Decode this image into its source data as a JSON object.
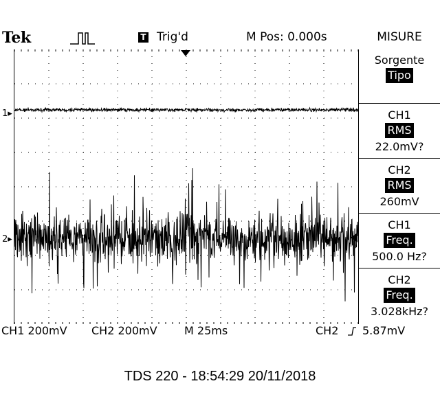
{
  "header": {
    "brand": "Tek",
    "trigger_icon_letter": "T",
    "trigger_status": "Trig'd",
    "m_pos": "M Pos: 0.000s",
    "menu_title": "MISURE"
  },
  "channel_markers": {
    "ch1": "1",
    "ch2": "2"
  },
  "menu": {
    "items": [
      {
        "line1": "Sorgente",
        "badge": "Tipo",
        "line3": ""
      },
      {
        "line1": "CH1",
        "badge": "RMS",
        "line3": "22.0mV?"
      },
      {
        "line1": "CH2",
        "badge": "RMS",
        "line3": "260mV"
      },
      {
        "line1": "CH1",
        "badge": "Freq.",
        "line3": "500.0 Hz?"
      },
      {
        "line1": "CH2",
        "badge": "Freq.",
        "line3": "3.028kHz?"
      }
    ]
  },
  "footer": {
    "ch1_scale": "CH1 200mV",
    "ch2_scale": "CH2 200mV",
    "timebase": "M 25ms",
    "trigger_source": "CH2",
    "trigger_slope_icon": "rising-edge-icon",
    "trigger_level": "5.87mV"
  },
  "caption": "TDS 220 - 18:54:29    20/11/2018",
  "display": {
    "trace_color": "#000000",
    "graticule_color": "#000000",
    "background": "#ffffff"
  }
}
